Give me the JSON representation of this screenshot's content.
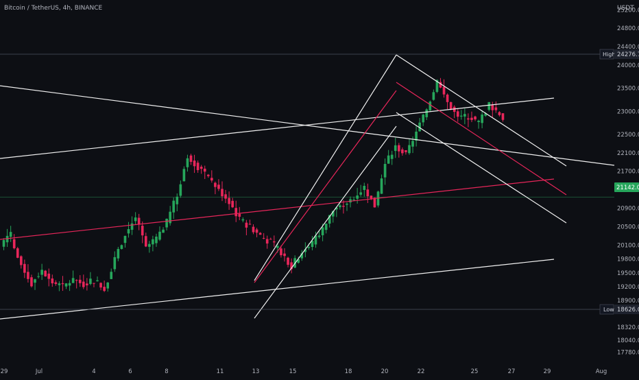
{
  "symbol_label": "Bitcoin / TetherUS, 4h, BINANCE",
  "currency": "USDT",
  "colors": {
    "background": "#0d0f14",
    "up": "#26a65b",
    "down": "#e8265a",
    "trendline_white": "#f2f2f2",
    "trendline_red": "#e8265a",
    "axis_text": "#b2b5be",
    "price_marker": "#26a65b"
  },
  "markers": {
    "high": {
      "label": "High",
      "value": "24276.74"
    },
    "low": {
      "label": "Low",
      "value": "18626.00"
    }
  },
  "chart_data": {
    "type": "candlestick",
    "y_axis_ticks": [
      "25200.00",
      "24800.00",
      "24400.00",
      "24000.00",
      "23500.00",
      "23000.00",
      "22500.00",
      "22100.00",
      "21700.00",
      "21300.00",
      "20900.00",
      "20500.00",
      "20100.00",
      "19800.00",
      "19500.00",
      "19200.00",
      "18900.00",
      "18320.00",
      "18040.00",
      "17780.00"
    ],
    "x_axis_ticks": [
      "29",
      "Jul",
      "4",
      "6",
      "8",
      "11",
      "13",
      "15",
      "18",
      "20",
      "22",
      "25",
      "27",
      "29",
      "Aug"
    ],
    "high": 24276.74,
    "low": 18626.0,
    "last_price": 21142.0,
    "price_path": [
      [
        20100,
        20400
      ],
      [
        20250,
        19600
      ],
      [
        19700,
        19250
      ],
      [
        19300,
        19550
      ],
      [
        19550,
        19300
      ],
      [
        19300,
        19200
      ],
      [
        19200,
        19350
      ],
      [
        19350,
        19250
      ],
      [
        19250,
        19350
      ],
      [
        19350,
        19150
      ],
      [
        19150,
        19800
      ],
      [
        19800,
        20350
      ],
      [
        20350,
        20700
      ],
      [
        20700,
        20050
      ],
      [
        20050,
        20250
      ],
      [
        20250,
        20600
      ],
      [
        20600,
        21200
      ],
      [
        21200,
        22050
      ],
      [
        22050,
        21800
      ],
      [
        21800,
        21550
      ],
      [
        21550,
        21300
      ],
      [
        21300,
        21050
      ],
      [
        21050,
        20650
      ],
      [
        20650,
        20500
      ],
      [
        20500,
        20300
      ],
      [
        20300,
        20150
      ],
      [
        20150,
        19950
      ],
      [
        19950,
        19650
      ],
      [
        19650,
        19950
      ],
      [
        19950,
        20150
      ],
      [
        20150,
        20450
      ],
      [
        20450,
        20850
      ],
      [
        20850,
        20950
      ],
      [
        20950,
        21150
      ],
      [
        21150,
        21350
      ],
      [
        21350,
        20950
      ],
      [
        20950,
        21850
      ],
      [
        21850,
        22250
      ],
      [
        22250,
        22050
      ],
      [
        22050,
        22550
      ],
      [
        22550,
        23050
      ],
      [
        23050,
        23650
      ],
      [
        23650,
        23200
      ],
      [
        23200,
        22850
      ],
      [
        22850,
        22900
      ],
      [
        22900,
        22750
      ],
      [
        22750,
        23150
      ],
      [
        23150,
        22950
      ],
      [
        22950,
        22650
      ],
      [
        22650,
        22450
      ],
      [
        22450,
        22150
      ],
      [
        22150,
        22250
      ],
      [
        22250,
        22800
      ],
      [
        22800,
        22350
      ],
      [
        22350,
        22050
      ],
      [
        22050,
        21750
      ],
      [
        21750,
        21300
      ],
      [
        21300,
        21142
      ]
    ]
  }
}
